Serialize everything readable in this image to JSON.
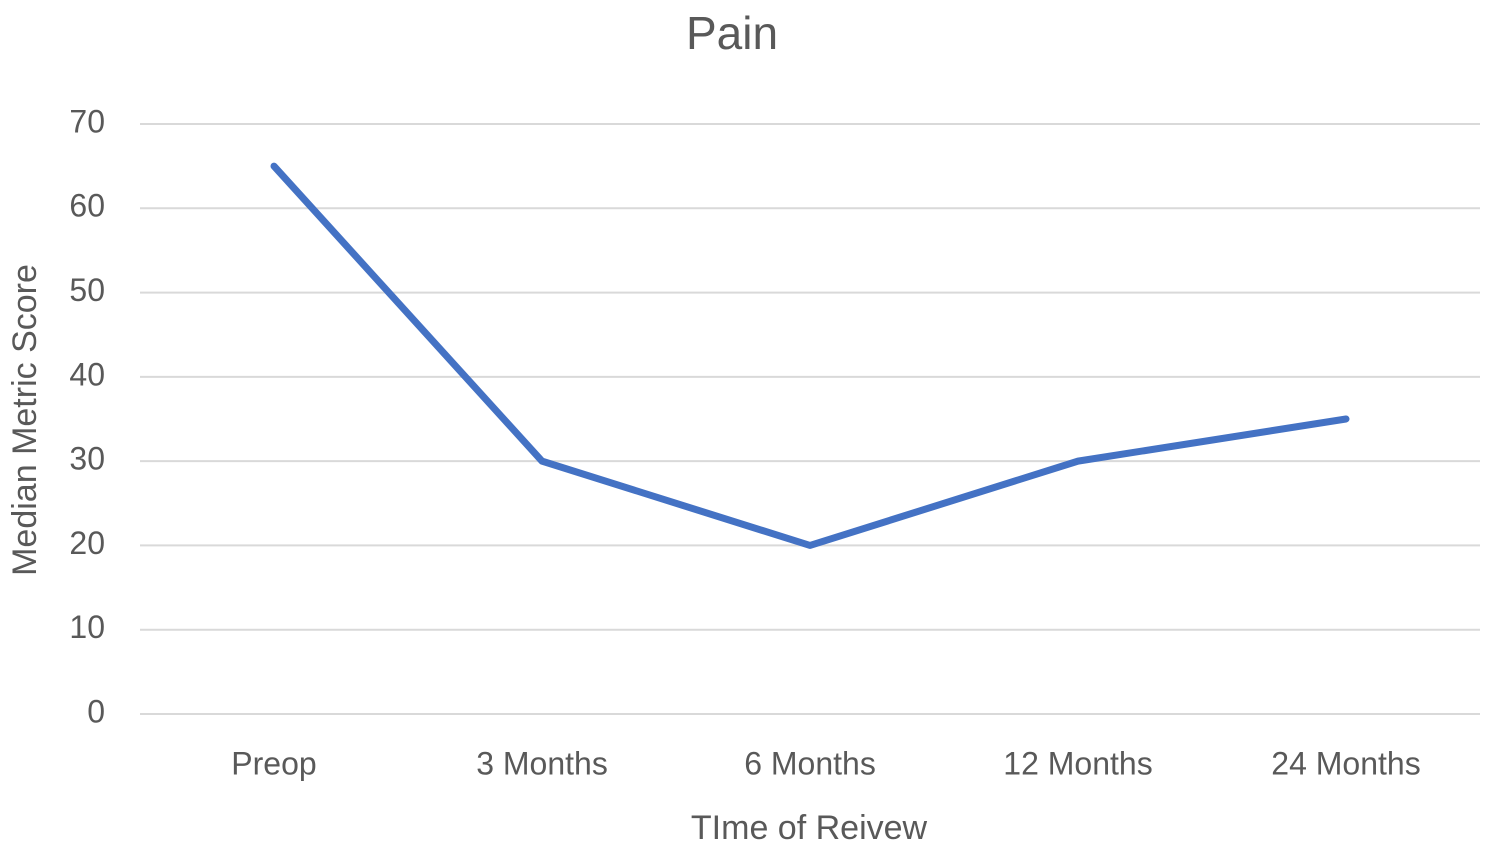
{
  "chart_data": {
    "type": "line",
    "title": "Pain",
    "x_label": "TIme of Reivew",
    "y_label": "Median Metric Score",
    "categories": [
      "Preop",
      "3 Months",
      "6 Months",
      "12 Months",
      "24 Months"
    ],
    "series": [
      {
        "name": "Pain",
        "color": "#4472c4",
        "values": [
          65,
          30,
          20,
          30,
          35
        ]
      }
    ],
    "ylim": [
      0,
      70
    ],
    "yticks": [
      0,
      10,
      20,
      30,
      40,
      50,
      60,
      70
    ],
    "grid": true
  }
}
